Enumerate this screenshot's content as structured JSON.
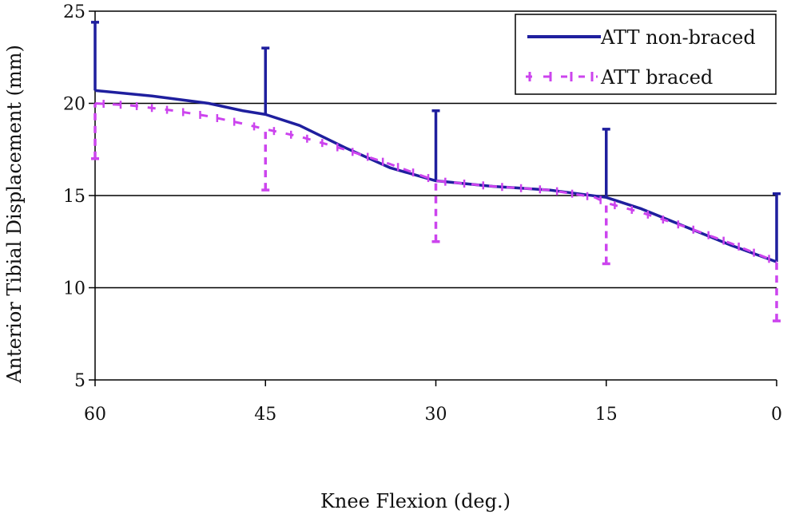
{
  "chart_data": {
    "type": "line",
    "xlabel": "Knee Flexion (deg.)",
    "ylabel": "Anterior Tibial Displacement (mm)",
    "xlim": [
      60,
      0
    ],
    "ylim": [
      5,
      25
    ],
    "x_ticks": [
      "60",
      "45",
      "30",
      "15",
      "0"
    ],
    "y_ticks": [
      "5",
      "10",
      "15",
      "20",
      "25"
    ],
    "grid": "horizontal",
    "legend_position": "top-right",
    "series": [
      {
        "name": "ATT non-braced",
        "color": "#1f1f9e",
        "style": "solid",
        "points": [
          [
            60,
            20.7
          ],
          [
            55,
            20.4
          ],
          [
            50,
            20.0
          ],
          [
            47,
            19.6
          ],
          [
            45,
            19.4
          ],
          [
            42,
            18.8
          ],
          [
            38,
            17.6
          ],
          [
            34,
            16.5
          ],
          [
            30,
            15.8
          ],
          [
            25,
            15.5
          ],
          [
            20,
            15.3
          ],
          [
            15,
            14.9
          ],
          [
            12,
            14.3
          ],
          [
            8,
            13.3
          ],
          [
            4,
            12.3
          ],
          [
            0,
            11.4
          ]
        ],
        "error_bars": [
          {
            "x": 60,
            "low": 20.7,
            "high": 24.4
          },
          {
            "x": 45,
            "low": 19.4,
            "high": 23.0
          },
          {
            "x": 30,
            "low": 15.8,
            "high": 19.6
          },
          {
            "x": 15,
            "low": 14.9,
            "high": 18.6
          },
          {
            "x": 0,
            "low": 11.4,
            "high": 15.1
          }
        ]
      },
      {
        "name": "ATT braced",
        "color": "#cc44ee",
        "style": "dashed",
        "points": [
          [
            60,
            20.0
          ],
          [
            57,
            19.9
          ],
          [
            53,
            19.6
          ],
          [
            50,
            19.3
          ],
          [
            47,
            18.9
          ],
          [
            45,
            18.6
          ],
          [
            42,
            18.2
          ],
          [
            38,
            17.5
          ],
          [
            34,
            16.7
          ],
          [
            30,
            15.8
          ],
          [
            25,
            15.5
          ],
          [
            20,
            15.3
          ],
          [
            16,
            14.9
          ],
          [
            15,
            14.6
          ],
          [
            12,
            14.1
          ],
          [
            8,
            13.3
          ],
          [
            4,
            12.4
          ],
          [
            0,
            11.4
          ]
        ],
        "error_bars": [
          {
            "x": 60,
            "low": 17.0,
            "high": 20.0
          },
          {
            "x": 45,
            "low": 15.3,
            "high": 18.6
          },
          {
            "x": 30,
            "low": 12.5,
            "high": 15.8
          },
          {
            "x": 15,
            "low": 11.3,
            "high": 14.6
          },
          {
            "x": 0,
            "low": 8.2,
            "high": 11.4
          }
        ]
      }
    ]
  }
}
